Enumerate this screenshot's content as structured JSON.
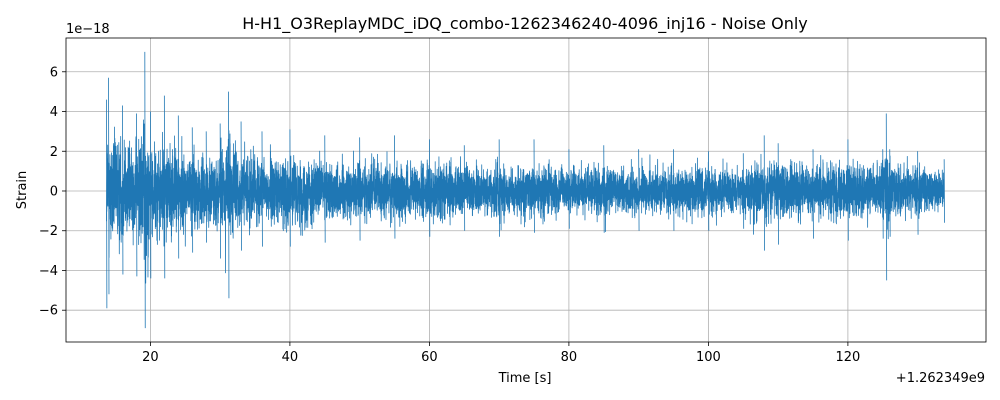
{
  "chart_data": {
    "type": "line",
    "title": "H-H1_O3ReplayMDC_iDQ_combo-1262346240-4096_inj16 - Noise Only",
    "xlabel": "Time [s]",
    "ylabel": "Strain",
    "x_offset_label": "+1.262349e9",
    "y_scale_label": "1e−18",
    "xlim": [
      7.9,
      139.8
    ],
    "ylim": [
      -7.6,
      7.7
    ],
    "x_ticks": [
      20,
      40,
      60,
      80,
      100,
      120
    ],
    "x_tick_labels": [
      "20",
      "40",
      "60",
      "80",
      "100",
      "120"
    ],
    "y_ticks": [
      -6,
      -4,
      -2,
      0,
      2,
      4,
      6
    ],
    "y_tick_labels": [
      "−6",
      "−4",
      "−2",
      "0",
      "2",
      "4",
      "6"
    ],
    "grid": true,
    "series": [
      {
        "color": "#1f77b4",
        "x_range": [
          13.7,
          133.8
        ],
        "envelope_x": [
          13.7,
          14,
          16,
          18,
          19.2,
          20,
          22,
          24,
          26,
          28,
          30,
          31.2,
          33,
          36,
          40,
          45,
          50,
          55,
          60,
          65,
          70,
          75,
          80,
          85,
          90,
          95,
          100,
          105,
          108,
          110,
          115,
          120,
          125,
          125.5,
          126,
          130,
          133.8
        ],
        "envelope_upper": [
          4.6,
          5.7,
          4.3,
          3.9,
          7.0,
          4.0,
          4.8,
          3.8,
          3.2,
          3.0,
          3.4,
          5.0,
          3.5,
          3.0,
          3.1,
          2.8,
          2.7,
          2.8,
          2.6,
          2.3,
          2.6,
          2.6,
          2.1,
          2.3,
          2.1,
          2.1,
          2.0,
          1.9,
          2.8,
          2.4,
          2.1,
          2.6,
          2.1,
          3.9,
          2.1,
          2.0,
          1.6
        ],
        "envelope_lower": [
          -5.9,
          -5.2,
          -4.2,
          -4.3,
          -6.9,
          -4.4,
          -4.4,
          -3.4,
          -3.1,
          -2.6,
          -3.4,
          -5.4,
          -3.0,
          -2.8,
          -2.8,
          -2.6,
          -2.5,
          -2.4,
          -2.3,
          -2.0,
          -2.3,
          -2.1,
          -1.9,
          -2.1,
          -2.0,
          -2.0,
          -2.0,
          -1.9,
          -3.0,
          -2.7,
          -2.4,
          -2.5,
          -2.4,
          -4.5,
          -2.3,
          -2.2,
          -1.6
        ]
      }
    ]
  }
}
